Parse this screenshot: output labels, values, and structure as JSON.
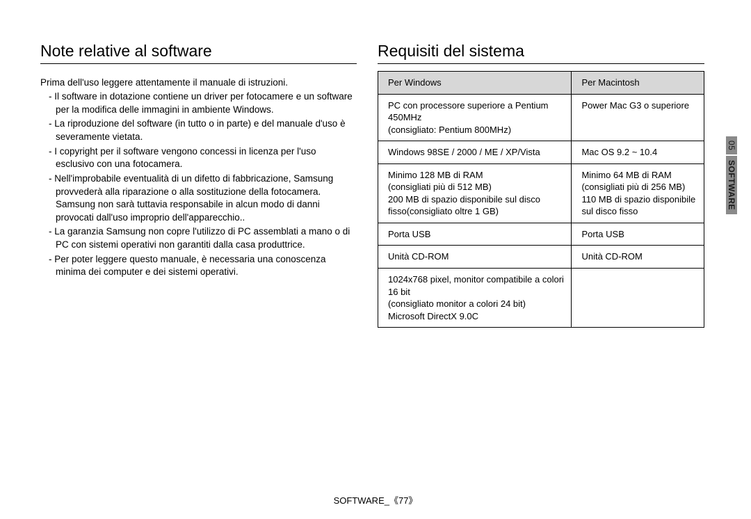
{
  "left": {
    "heading": "Note relative al software",
    "intro": "Prima dell'uso leggere attentamente il manuale di istruzioni.",
    "items": [
      "Il software in dotazione contiene un driver per fotocamere e un software per la modifica delle immagini in ambiente Windows.",
      "La riproduzione del software (in tutto o in parte) e del manuale d'uso è severamente vietata.",
      "I copyright per il software vengono concessi in licenza per l'uso esclusivo con una fotocamera.",
      "Nell'improbabile eventualità di un difetto di fabbricazione, Samsung provvederà alla riparazione o alla sostituzione della fotocamera. Samsung non sarà tuttavia responsabile in alcun modo di danni provocati dall'uso improprio dell'apparecchio..",
      "La garanzia Samsung non copre l'utilizzo di PC assemblati a mano o di PC con sistemi operativi non garantiti dalla casa produttrice.",
      "Per poter leggere questo manuale, è necessaria una conoscenza minima dei computer e dei sistemi operativi."
    ]
  },
  "right": {
    "heading": "Requisiti del sistema",
    "headers": {
      "win": "Per Windows",
      "mac": "Per Macintosh"
    },
    "rows": [
      {
        "win": "PC con processore superiore a Pentium 450MHz\n(consigliato: Pentium 800MHz)",
        "mac": "Power Mac G3 o superiore"
      },
      {
        "win": "Windows 98SE / 2000 / ME / XP/Vista",
        "mac": "Mac OS 9.2 ~ 10.4"
      },
      {
        "win": "Minimo 128 MB di RAM\n(consigliati più di 512 MB)\n200 MB di spazio disponibile sul disco fisso(consigliato oltre 1 GB)",
        "mac": "Minimo 64 MB di RAM\n(consigliati più di 256 MB)\n110 MB di spazio disponibile sul disco fisso"
      },
      {
        "win": "Porta USB",
        "mac": "Porta USB"
      },
      {
        "win": "Unità CD-ROM",
        "mac": "Unità CD-ROM"
      },
      {
        "win": "1024x768 pixel, monitor compatibile a colori 16 bit\n(consigliato monitor a colori 24 bit)\nMicrosoft DirectX 9.0C",
        "mac": ""
      }
    ]
  },
  "sideTab": {
    "number": "05",
    "label": "SOFTWARE"
  },
  "footer": "SOFTWARE_《77》",
  "style": {
    "heading_fontsize": 23,
    "body_fontsize": 13.5,
    "table_fontsize": 13,
    "header_bg": "#d7d7d7",
    "border_color": "#000000",
    "tab_dark_bg": "#8a8a8a",
    "tab_light_bg": "#eeeeee",
    "page_bg": "#ffffff",
    "text_color": "#000000"
  }
}
